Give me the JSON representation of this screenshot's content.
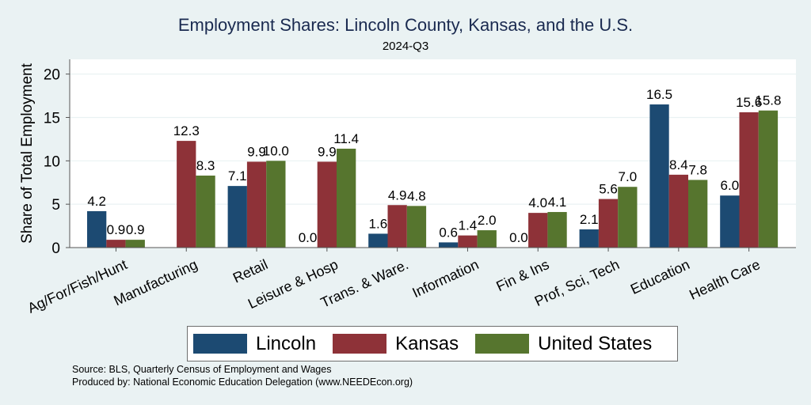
{
  "chart_data": {
    "type": "bar",
    "title": "Employment Shares: Lincoln County, Kansas, and the U.S.",
    "subtitle": "2024-Q3",
    "xlabel": "",
    "ylabel": "Share of Total Employment",
    "ylim": [
      0,
      21.7
    ],
    "yticks": [
      0,
      5,
      10,
      15,
      20
    ],
    "grid": true,
    "legend_position": "bottom",
    "categories": [
      "Ag/For/Fish/Hunt",
      "Manufacturing",
      "Retail",
      "Leisure & Hosp",
      "Trans. & Ware.",
      "Information",
      "Fin & Ins",
      "Prof, Sci, Tech",
      "Education",
      "Health Care"
    ],
    "series": [
      {
        "name": "Lincoln",
        "color": "#1c4a72",
        "values": [
          4.2,
          null,
          7.1,
          0.0,
          1.6,
          0.6,
          0.0,
          2.1,
          16.5,
          6.0
        ],
        "labels": [
          "4.2",
          "",
          "7.1",
          "0.0",
          "1.6",
          "0.6",
          "0.0",
          "2.1",
          "16.5",
          "6.0"
        ]
      },
      {
        "name": "Kansas",
        "color": "#8e3238",
        "values": [
          0.9,
          12.3,
          9.9,
          9.9,
          4.9,
          1.4,
          4.0,
          5.6,
          8.4,
          15.6
        ],
        "labels": [
          "0.9",
          "12.3",
          "9.9",
          "9.9",
          "4.9",
          "1.4",
          "4.0",
          "5.6",
          "8.4",
          "15.6"
        ]
      },
      {
        "name": "United States",
        "color": "#56752e",
        "values": [
          0.9,
          8.3,
          10.0,
          11.4,
          4.8,
          2.0,
          4.1,
          7.0,
          7.8,
          15.8
        ],
        "labels": [
          "0.9",
          "8.3",
          "10.0",
          "11.4",
          "4.8",
          "2.0",
          "4.1",
          "7.0",
          "7.8",
          "15.8"
        ]
      }
    ]
  },
  "notes": {
    "source": "Source: BLS, Quarterly Census of Employment and Wages",
    "produced": "Produced by: National Economic Education Delegation (www.NEEDEcon.org)"
  }
}
